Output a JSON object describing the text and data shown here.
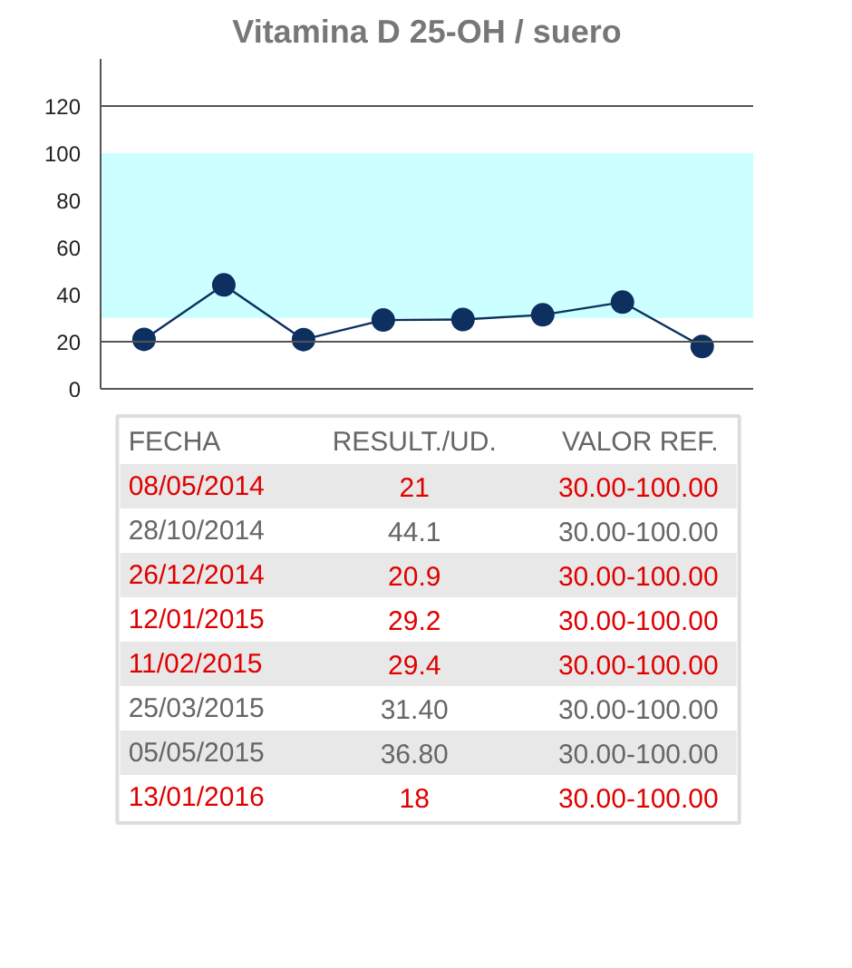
{
  "chart_data": {
    "type": "line",
    "title": "Vitamina D 25-OH / suero",
    "categories": [
      null,
      null,
      null,
      null,
      null,
      null,
      null,
      null
    ],
    "series": [
      {
        "color": "#0d3060",
        "values": [
          21,
          44.1,
          20.9,
          29.2,
          29.4,
          31.4,
          36.8,
          18
        ]
      }
    ],
    "marker": "circle",
    "ylim": [
      0,
      140
    ],
    "yticks": [
      0,
      20,
      40,
      60,
      80,
      100,
      120
    ],
    "grid": false,
    "ref_lines": [
      {
        "axis": "y",
        "value": 20,
        "color": "#555555"
      },
      {
        "axis": "y",
        "value": 120,
        "color": "#555555"
      }
    ],
    "bands": [
      {
        "axis": "y",
        "from": 30,
        "to": 100,
        "color": "#ccffff"
      }
    ],
    "annotations": [
      "FECHA",
      "RESULT./UD.",
      "VALOR REF.",
      "08/05/2014",
      "21",
      "30.00-100.00",
      "28/10/2014",
      "44.1",
      "30.00-100.00",
      "26/12/2014",
      "20.9",
      "30.00-100.00",
      "12/01/2015",
      "29.2",
      "30.00-100.00",
      "11/02/2015",
      "29.4",
      "30.00-100.00",
      "25/03/2015",
      "31.40",
      "30.00-100.00",
      "05/05/2015",
      "36.80",
      "30.00-100.00",
      "13/01/2016",
      "18",
      "30.00-100.00"
    ]
  }
}
